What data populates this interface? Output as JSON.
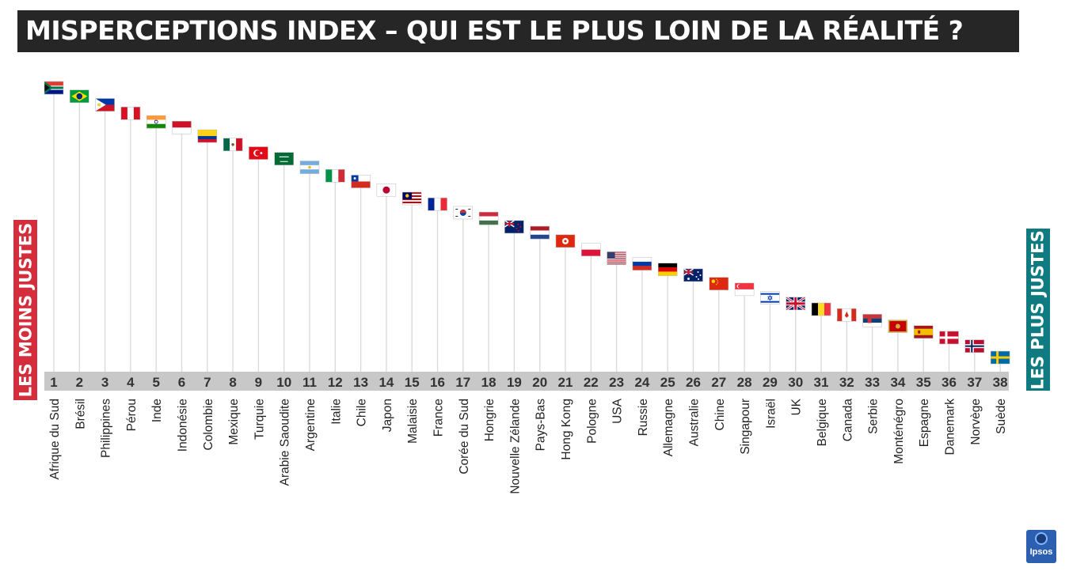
{
  "title": "MISPERCEPTIONS INDEX – QUI EST LE PLUS LOIN DE LA RÉALITÉ ?",
  "left_label": "LES MOINS JUSTES",
  "right_label": "LES PLUS JUSTES",
  "logo_text": "Ipsos",
  "colors": {
    "title_bg": "#262626",
    "left_accent": "#d42e3d",
    "right_accent": "#0f7b80",
    "rank_band": "#c8c8c8",
    "stick": "#d9d9d9"
  },
  "chart_data": {
    "type": "bar",
    "categories": [
      "Afrique du Sud",
      "Brésil",
      "Philippines",
      "Pérou",
      "Inde",
      "Indonésie",
      "Colombie",
      "Mexique",
      "Turquie",
      "Arabie Saoudite",
      "Argentine",
      "Italie",
      "Chile",
      "Japon",
      "Malaisie",
      "France",
      "Corée du Sud",
      "Hongrie",
      "Nouvelle Zélande",
      "Pays-Bas",
      "Hong Kong",
      "Pologne",
      "USA",
      "Russie",
      "Allemagne",
      "Australie",
      "Chine",
      "Singapour",
      "Israël",
      "UK",
      "Belgique",
      "Canada",
      "Serbie",
      "Monténégro",
      "Espagne",
      "Danemark",
      "Norvège",
      "Suède"
    ],
    "ranks": [
      1,
      2,
      3,
      4,
      5,
      6,
      7,
      8,
      9,
      10,
      11,
      12,
      13,
      14,
      15,
      16,
      17,
      18,
      19,
      20,
      21,
      22,
      23,
      24,
      25,
      26,
      27,
      28,
      29,
      30,
      31,
      32,
      33,
      34,
      35,
      36,
      37,
      38
    ],
    "values": [
      100,
      97,
      94,
      91,
      88,
      86,
      83,
      80,
      77,
      75,
      72,
      69,
      67,
      64,
      61,
      59,
      56,
      54,
      51,
      49,
      46,
      43,
      40,
      38,
      36,
      34,
      31,
      29,
      26,
      24,
      22,
      20,
      18,
      16,
      14,
      12,
      9,
      5
    ],
    "ylim": [
      0,
      100
    ],
    "flag_icons": [
      "flag-south-africa",
      "flag-brazil",
      "flag-philippines",
      "flag-peru",
      "flag-india",
      "flag-indonesia",
      "flag-colombia",
      "flag-mexico",
      "flag-turkey",
      "flag-saudi-arabia",
      "flag-argentina",
      "flag-italy",
      "flag-chile",
      "flag-japan",
      "flag-malaysia",
      "flag-france",
      "flag-south-korea",
      "flag-hungary",
      "flag-new-zealand",
      "flag-netherlands",
      "flag-hong-kong",
      "flag-poland",
      "flag-usa",
      "flag-russia",
      "flag-germany",
      "flag-australia",
      "flag-china",
      "flag-singapore",
      "flag-israel",
      "flag-uk",
      "flag-belgium",
      "flag-canada",
      "flag-serbia",
      "flag-montenegro",
      "flag-spain",
      "flag-denmark",
      "flag-norway",
      "flag-sweden"
    ]
  }
}
